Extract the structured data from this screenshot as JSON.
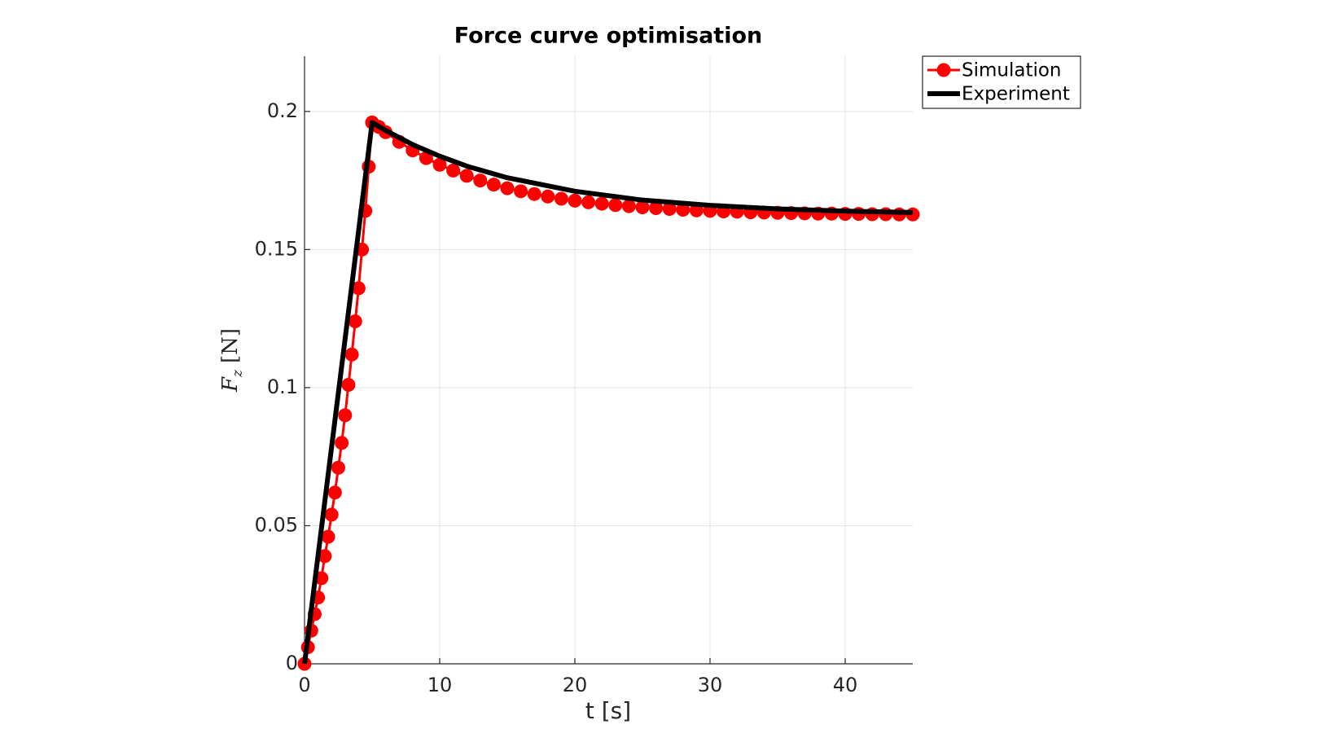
{
  "chart_data": {
    "type": "line",
    "title": "Force curve optimisation",
    "x_label": "t [s]",
    "y_label": {
      "symbol": "F",
      "subscript": "z",
      "unit": "[N]"
    },
    "xlim": [
      0,
      45
    ],
    "xticks": [
      0,
      10,
      20,
      30,
      40
    ],
    "ylim": [
      0,
      0.22
    ],
    "yticks": [
      0,
      0.05,
      0.1,
      0.15,
      0.2
    ],
    "grid": true,
    "legend": "northeastoutside",
    "series": [
      {
        "name": "Simulation",
        "color": "#ff0000",
        "marker": true,
        "x": [
          0,
          0.25,
          0.5,
          0.75,
          1,
          1.25,
          1.5,
          1.75,
          2,
          2.25,
          2.5,
          2.75,
          3,
          3.25,
          3.5,
          3.75,
          4,
          4.25,
          4.5,
          4.75,
          5,
          5.5,
          6,
          7,
          8,
          9,
          10,
          11,
          12,
          13,
          14,
          15,
          16,
          17,
          18,
          19,
          20,
          21,
          22,
          23,
          24,
          25,
          26,
          27,
          28,
          29,
          30,
          31,
          32,
          33,
          34,
          35,
          36,
          37,
          38,
          39,
          40,
          41,
          42,
          43,
          44,
          45
        ],
        "values": [
          0,
          0.006,
          0.012,
          0.018,
          0.024,
          0.031,
          0.039,
          0.046,
          0.054,
          0.062,
          0.071,
          0.08,
          0.09,
          0.101,
          0.112,
          0.124,
          0.136,
          0.15,
          0.164,
          0.18,
          0.196,
          0.1944,
          0.1925,
          0.189,
          0.1859,
          0.1831,
          0.1807,
          0.1786,
          0.1767,
          0.175,
          0.1735,
          0.1722,
          0.1711,
          0.1701,
          0.1692,
          0.1684,
          0.1677,
          0.1671,
          0.1666,
          0.1661,
          0.1657,
          0.1653,
          0.165,
          0.1647,
          0.1644,
          0.1642,
          0.164,
          0.1638,
          0.1637,
          0.1635,
          0.1634,
          0.1633,
          0.1632,
          0.1631,
          0.163,
          0.163,
          0.1629,
          0.1629,
          0.1628,
          0.1628,
          0.1627,
          0.1627
        ]
      },
      {
        "name": "Experiment",
        "color": "#000000",
        "marker": false,
        "x": [
          0,
          5,
          6,
          8,
          10,
          12,
          15,
          20,
          25,
          30,
          35,
          40,
          45
        ],
        "values": [
          0,
          0.196,
          0.1931,
          0.188,
          0.1838,
          0.1802,
          0.176,
          0.1711,
          0.1679,
          0.166,
          0.1647,
          0.1639,
          0.1634
        ]
      }
    ]
  }
}
